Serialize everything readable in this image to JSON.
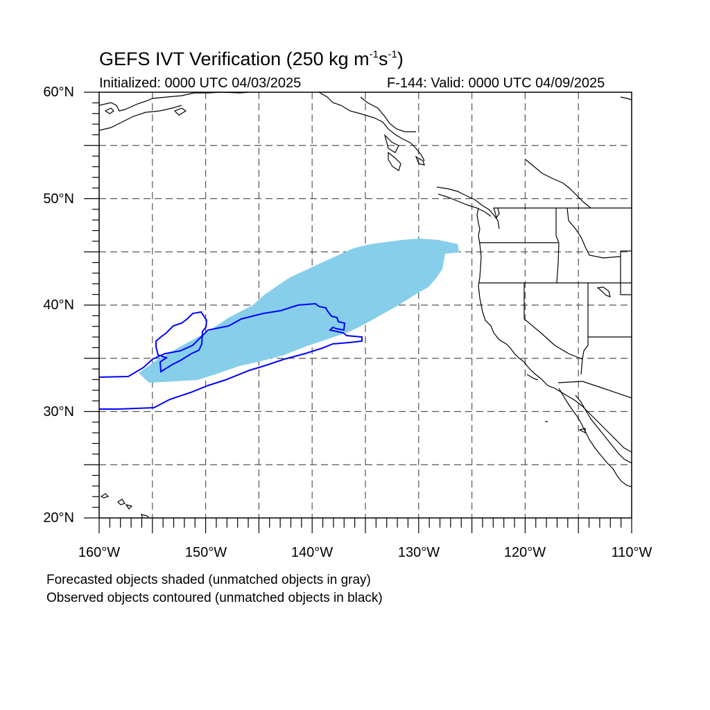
{
  "header": {
    "title_main": "GEFS IVT Verification (250 kg m",
    "title_exp1": "-1",
    "title_mid": "s",
    "title_exp2": "-1",
    "title_end": ")",
    "initialized": "Initialized: 0000 UTC 04/03/2025",
    "valid": "F-144: Valid: 0000 UTC 04/09/2025"
  },
  "map": {
    "projection": "cylindrical equidistant",
    "lon_range": [
      -160,
      -110
    ],
    "lat_range": [
      20,
      60
    ],
    "grid_spacing_deg": 5,
    "gridline_style": "dashed",
    "lat_labels": [
      "60°N",
      "50°N",
      "40°N",
      "30°N",
      "20°N"
    ],
    "lon_labels": [
      "160°W",
      "150°W",
      "140°W",
      "130°W",
      "120°W",
      "110°W"
    ],
    "forecast_object_color": "#87ceeb",
    "observed_object_color": "#0000ff",
    "coastline_color": "#000000"
  },
  "notes": {
    "line1": "Forecasted objects shaded (unmatched objects in gray)",
    "line2": "Observed objects contoured (unmatched objects in black)"
  }
}
